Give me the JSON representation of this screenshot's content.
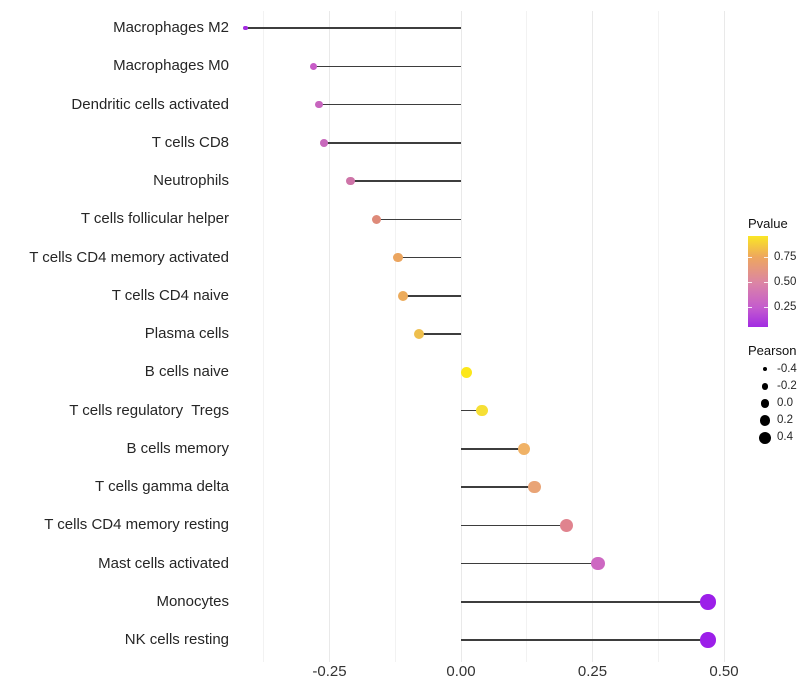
{
  "chart_data": {
    "type": "scatter",
    "subtype": "lollipop",
    "orientation": "horizontal",
    "title": "",
    "xlabel": "",
    "ylabel": "",
    "grid": "vertical-only",
    "x_axis": {
      "tick_labels": [
        "-0.25",
        "0.00",
        "0.25",
        "0.50"
      ],
      "tick_values": [
        -0.25,
        0,
        0.25,
        0.5
      ],
      "minor_tick_values": [
        -0.375,
        -0.125,
        0.125,
        0.375
      ],
      "range": [
        -0.435,
        0.525
      ]
    },
    "points": [
      {
        "label": "Macrophages M2",
        "pearson": -0.41,
        "color": "#A32BE0"
      },
      {
        "label": "Macrophages M0",
        "pearson": -0.28,
        "color": "#C75BC7"
      },
      {
        "label": "Dendritic cells activated",
        "pearson": -0.27,
        "color": "#C765BE"
      },
      {
        "label": "T cells CD8",
        "pearson": -0.26,
        "color": "#C869BC"
      },
      {
        "label": "Neutrophils",
        "pearson": -0.21,
        "color": "#CE74A8"
      },
      {
        "label": "T cells follicular helper",
        "pearson": -0.16,
        "color": "#DE8A79"
      },
      {
        "label": "T cells CD4 memory activated",
        "pearson": -0.12,
        "color": "#EBA55F"
      },
      {
        "label": "T cells CD4 naive",
        "pearson": -0.11,
        "color": "#ECAB5B"
      },
      {
        "label": "Plasma cells",
        "pearson": -0.08,
        "color": "#EEBF4D"
      },
      {
        "label": "B cells naive",
        "pearson": 0.01,
        "color": "#FCE71B"
      },
      {
        "label": "T cells regulatory  Tregs",
        "pearson": 0.04,
        "color": "#F6DF35"
      },
      {
        "label": "B cells memory",
        "pearson": 0.12,
        "color": "#F0B266"
      },
      {
        "label": "T cells gamma delta",
        "pearson": 0.14,
        "color": "#E9A476"
      },
      {
        "label": "T cells CD4 memory resting",
        "pearson": 0.2,
        "color": "#E0838E"
      },
      {
        "label": "Mast cells activated",
        "pearson": 0.26,
        "color": "#CD68C2"
      },
      {
        "label": "Monocytes",
        "pearson": 0.47,
        "color": "#9C1FE9"
      },
      {
        "label": "NK cells resting",
        "pearson": 0.47,
        "color": "#9C1FE9"
      }
    ],
    "legend_pvalue": {
      "title": "Pvalue",
      "tick_labels": [
        "0.75",
        "0.50",
        "0.25"
      ],
      "tick_values": [
        0.75,
        0.5,
        0.25
      ],
      "bar_value_top": 0.96,
      "bar_value_bottom": 0.06,
      "gradient": [
        {
          "pos": 0.0,
          "color": "#FAE625"
        },
        {
          "pos": 0.23,
          "color": "#EEA75E"
        },
        {
          "pos": 0.52,
          "color": "#DB84A6"
        },
        {
          "pos": 0.79,
          "color": "#C45BCE"
        },
        {
          "pos": 1.0,
          "color": "#A22BE2"
        }
      ]
    },
    "legend_pearson": {
      "title": "Pearson",
      "dot_color": "#000000",
      "items": [
        {
          "label": "-0.4",
          "value": -0.4
        },
        {
          "label": "-0.2",
          "value": -0.2
        },
        {
          "label": "0.0",
          "value": 0.0
        },
        {
          "label": "0.2",
          "value": 0.2
        },
        {
          "label": "0.4",
          "value": 0.4
        }
      ]
    }
  }
}
